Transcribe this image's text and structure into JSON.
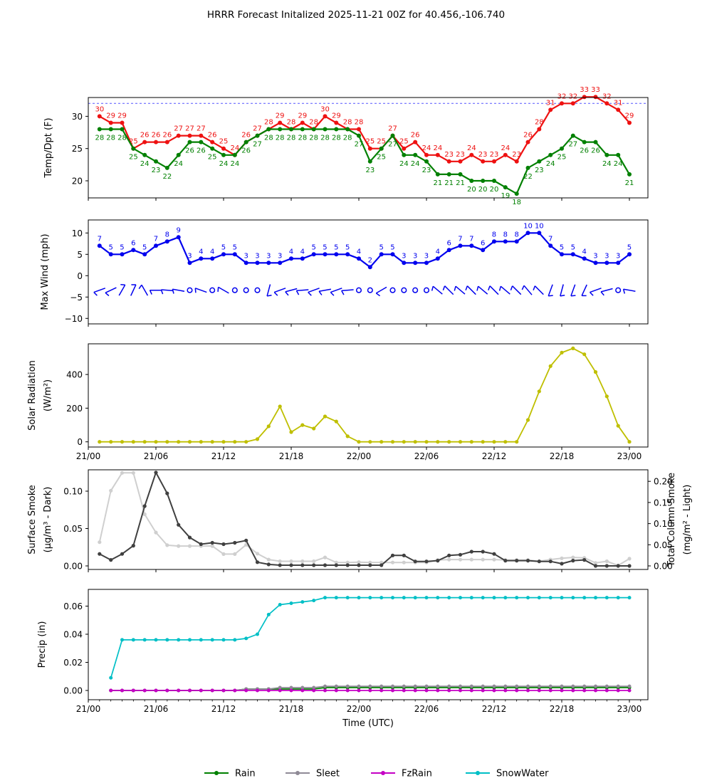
{
  "title": "HRRR Forecast Initalized 2025-11-21 00Z for 40.456,-106.740",
  "x_axis": {
    "label": "Time (UTC)",
    "tick_hours": [
      0,
      6,
      12,
      18,
      24,
      30,
      36,
      42,
      48
    ],
    "tick_labels": [
      "21/00",
      "21/06",
      "21/12",
      "21/18",
      "22/00",
      "22/06",
      "22/12",
      "22/18",
      "23/00"
    ]
  },
  "legend": {
    "items": [
      {
        "label": "Rain",
        "color": "#008000"
      },
      {
        "label": "Sleet",
        "color": "#8f8a96"
      },
      {
        "label": "FzRain",
        "color": "#c400c4"
      },
      {
        "label": "SnowWater",
        "color": "#00bfc6"
      }
    ]
  },
  "chart_data": [
    {
      "id": "temp",
      "type": "line",
      "ylabel_lines": [
        "Temp/Dpt (F)"
      ],
      "yticks": [
        {
          "v": 20,
          "label": "20"
        },
        {
          "v": 25,
          "label": "25"
        },
        {
          "v": 30,
          "label": "30"
        }
      ],
      "ylim": [
        17.3,
        33.1
      ],
      "ref_line": {
        "value": 32,
        "color": "#5555ff",
        "style": "dashed"
      },
      "series": [
        {
          "name": "temperature",
          "color": "#ee1111",
          "start_hour": 1,
          "point_labels": "above",
          "values": [
            30,
            29,
            29,
            25,
            26,
            26,
            26,
            27,
            27,
            27,
            26,
            25,
            24,
            26,
            27,
            28,
            29,
            28,
            29,
            28,
            30,
            29,
            28,
            28,
            25,
            25,
            27,
            25,
            26,
            24,
            24,
            23,
            23,
            24,
            23,
            23,
            24,
            23,
            26,
            28,
            31,
            32,
            32,
            33,
            33,
            32,
            31,
            29
          ]
        },
        {
          "name": "dewpoint",
          "color": "#008000",
          "start_hour": 1,
          "point_labels": "below",
          "values": [
            28,
            28,
            28,
            25,
            24,
            23,
            22,
            24,
            26,
            26,
            25,
            24,
            24,
            26,
            27,
            28,
            28,
            28,
            28,
            28,
            28,
            28,
            28,
            27,
            23,
            25,
            27,
            24,
            24,
            23,
            21,
            21,
            21,
            20,
            20,
            20,
            19,
            18,
            22,
            23,
            24,
            25,
            27,
            26,
            26,
            24,
            24,
            21
          ]
        }
      ]
    },
    {
      "id": "wind",
      "type": "line",
      "ylabel_lines": [
        "Max Wind (mph)"
      ],
      "yticks": [
        {
          "v": -10,
          "label": "−10"
        },
        {
          "v": -5,
          "label": "−5"
        },
        {
          "v": 0,
          "label": "0"
        },
        {
          "v": 5,
          "label": "5"
        },
        {
          "v": 10,
          "label": "10"
        }
      ],
      "ylim": [
        -11.3,
        13.1
      ],
      "series": [
        {
          "name": "max_wind",
          "color": "#0000ee",
          "start_hour": 1,
          "point_labels": "above",
          "values": [
            7,
            5,
            5,
            6,
            5,
            7,
            8,
            9,
            3,
            4,
            4,
            5,
            5,
            3,
            3,
            3,
            3,
            4,
            4,
            5,
            5,
            5,
            5,
            4,
            2,
            5,
            5,
            3,
            3,
            3,
            4,
            6,
            7,
            7,
            6,
            8,
            8,
            8,
            10,
            10,
            7,
            5,
            5,
            4,
            3,
            3,
            3,
            5
          ]
        }
      ],
      "barbs": {
        "row_value": -3.4,
        "color": "#0000ee",
        "angles": [
          200,
          205,
          60,
          65,
          120,
          180,
          175,
          170,
          null,
          160,
          null,
          150,
          null,
          null,
          null,
          255,
          200,
          195,
          185,
          200,
          190,
          200,
          185,
          null,
          null,
          210,
          null,
          null,
          null,
          null,
          140,
          135,
          140,
          135,
          140,
          135,
          140,
          135,
          130,
          135,
          250,
          255,
          250,
          245,
          200,
          195,
          null,
          170
        ]
      }
    },
    {
      "id": "solar",
      "type": "line",
      "ylabel_lines": [
        "Solar Radiation",
        "(W/m²)"
      ],
      "yticks": [
        {
          "v": 0,
          "label": "0"
        },
        {
          "v": 200,
          "label": "200"
        },
        {
          "v": 400,
          "label": "400"
        }
      ],
      "ylim": [
        -31,
        583
      ],
      "show_x_tick_labels": true,
      "series": [
        {
          "name": "solar_radiation",
          "color": "#bfbf00",
          "start_hour": 1,
          "point_labels": "none",
          "values": [
            0,
            0,
            0,
            0,
            0,
            0,
            0,
            0,
            0,
            0,
            0,
            0,
            0,
            0,
            16,
            92,
            210,
            58,
            100,
            79,
            151,
            121,
            33,
            0,
            0,
            0,
            0,
            0,
            0,
            0,
            0,
            0,
            0,
            0,
            0,
            0,
            0,
            0,
            130,
            300,
            450,
            530,
            555,
            520,
            415,
            270,
            95,
            0
          ]
        }
      ]
    },
    {
      "id": "smoke",
      "type": "line",
      "ylabel_lines": [
        "Surface Smoke",
        "(µg/m³ - Dark)"
      ],
      "yticks": [
        {
          "v": 0,
          "label": "0.00"
        },
        {
          "v": 0.05,
          "label": "0.05"
        },
        {
          "v": 0.1,
          "label": "0.10"
        }
      ],
      "ylim": [
        -0.005,
        0.129
      ],
      "right_axis": {
        "ylabel_lines": [
          "Total Column Smoke",
          "(mg/m² - Light)"
        ],
        "yticks": [
          {
            "v": 0,
            "label": "0.00"
          },
          {
            "v": 0.05,
            "label": "0.05"
          },
          {
            "v": 0.1,
            "label": "0.10"
          },
          {
            "v": 0.15,
            "label": "0.15"
          },
          {
            "v": 0.2,
            "label": "0.20"
          }
        ],
        "ylim": [
          -0.0053,
          0.2065
        ]
      },
      "series": [
        {
          "name": "total_column_smoke",
          "color": "#cfcfcf",
          "axis": "right",
          "start_hour": 1,
          "point_labels": "none",
          "values": [
            0.056,
            0.178,
            0.22,
            0.22,
            0.122,
            0.079,
            0.049,
            0.047,
            0.047,
            0.047,
            0.047,
            0.028,
            0.028,
            0.05,
            0.029,
            0.015,
            0.011,
            0.011,
            0.011,
            0.011,
            0.02,
            0.008,
            0.008,
            0.009,
            0.008,
            0.008,
            0.008,
            0.008,
            0.008,
            0.008,
            0.014,
            0.015,
            0.015,
            0.015,
            0.015,
            0.015,
            0.014,
            0.014,
            0.014,
            0.011,
            0.015,
            0.018,
            0.02,
            0.019,
            0.007,
            0.011,
            0.001,
            0.017
          ]
        },
        {
          "name": "surface_smoke",
          "color": "#404040",
          "axis": "left",
          "start_hour": 1,
          "point_labels": "none",
          "values": [
            0.016,
            0.008,
            0.016,
            0.027,
            0.08,
            0.125,
            0.097,
            0.055,
            0.038,
            0.029,
            0.031,
            0.029,
            0.031,
            0.034,
            0.005,
            0.002,
            0.001,
            0.001,
            0.001,
            0.001,
            0.001,
            0.001,
            0.001,
            0.001,
            0.001,
            0.001,
            0.014,
            0.014,
            0.006,
            0.006,
            0.007,
            0.014,
            0.015,
            0.019,
            0.019,
            0.016,
            0.007,
            0.007,
            0.007,
            0.006,
            0.006,
            0.003,
            0.007,
            0.008,
            0.0,
            0.0,
            0.0,
            0.0
          ]
        }
      ]
    },
    {
      "id": "precip",
      "type": "line",
      "ylabel_lines": [
        "Precip (in)"
      ],
      "yticks": [
        {
          "v": 0,
          "label": "0.00"
        },
        {
          "v": 0.02,
          "label": "0.02"
        },
        {
          "v": 0.04,
          "label": "0.04"
        },
        {
          "v": 0.06,
          "label": "0.06"
        }
      ],
      "ylim": [
        -0.006,
        0.072
      ],
      "show_x_tick_labels": true,
      "show_x_label": true,
      "minor_x_ticks": true,
      "series": [
        {
          "name": "rain",
          "color": "#008000",
          "start_hour": 2,
          "point_labels": "none",
          "values": [
            0,
            0,
            0,
            0,
            0,
            0,
            0,
            0,
            0,
            0,
            0,
            0,
            0.001,
            0.001,
            0.001,
            0.001,
            0.001,
            0.001,
            0.001,
            0.002,
            0.002,
            0.002,
            0.002,
            0.002,
            0.002,
            0.002,
            0.002,
            0.002,
            0.002,
            0.002,
            0.002,
            0.002,
            0.002,
            0.002,
            0.002,
            0.002,
            0.002,
            0.002,
            0.002,
            0.002,
            0.002,
            0.002,
            0.002,
            0.002,
            0.002,
            0.002,
            0.002
          ]
        },
        {
          "name": "sleet",
          "color": "#8f8a96",
          "start_hour": 2,
          "point_labels": "none",
          "values": [
            0,
            0,
            0,
            0,
            0,
            0,
            0,
            0,
            0,
            0,
            0,
            0,
            0.001,
            0.001,
            0.001,
            0.002,
            0.002,
            0.002,
            0.002,
            0.003,
            0.003,
            0.003,
            0.003,
            0.003,
            0.003,
            0.003,
            0.003,
            0.003,
            0.003,
            0.003,
            0.003,
            0.003,
            0.003,
            0.003,
            0.003,
            0.003,
            0.003,
            0.003,
            0.003,
            0.003,
            0.003,
            0.003,
            0.003,
            0.003,
            0.003,
            0.003,
            0.003
          ]
        },
        {
          "name": "fzrain",
          "color": "#c400c4",
          "start_hour": 2,
          "point_labels": "none",
          "values": [
            0,
            0,
            0,
            0,
            0,
            0,
            0,
            0,
            0,
            0,
            0,
            0,
            0,
            0,
            0,
            0,
            0,
            0,
            0,
            0,
            0,
            0,
            0,
            0,
            0,
            0,
            0,
            0,
            0,
            0,
            0,
            0,
            0,
            0,
            0,
            0,
            0,
            0,
            0,
            0,
            0,
            0,
            0,
            0,
            0,
            0,
            0
          ]
        },
        {
          "name": "snowwater",
          "color": "#00bfc6",
          "start_hour": 2,
          "point_labels": "none",
          "values": [
            0.009,
            0.036,
            0.036,
            0.036,
            0.036,
            0.036,
            0.036,
            0.036,
            0.036,
            0.036,
            0.036,
            0.036,
            0.037,
            0.04,
            0.054,
            0.061,
            0.062,
            0.063,
            0.064,
            0.066,
            0.066,
            0.066,
            0.066,
            0.066,
            0.066,
            0.066,
            0.066,
            0.066,
            0.066,
            0.066,
            0.066,
            0.066,
            0.066,
            0.066,
            0.066,
            0.066,
            0.066,
            0.066,
            0.066,
            0.066,
            0.066,
            0.066,
            0.066,
            0.066,
            0.066,
            0.066,
            0.066
          ]
        }
      ]
    }
  ]
}
